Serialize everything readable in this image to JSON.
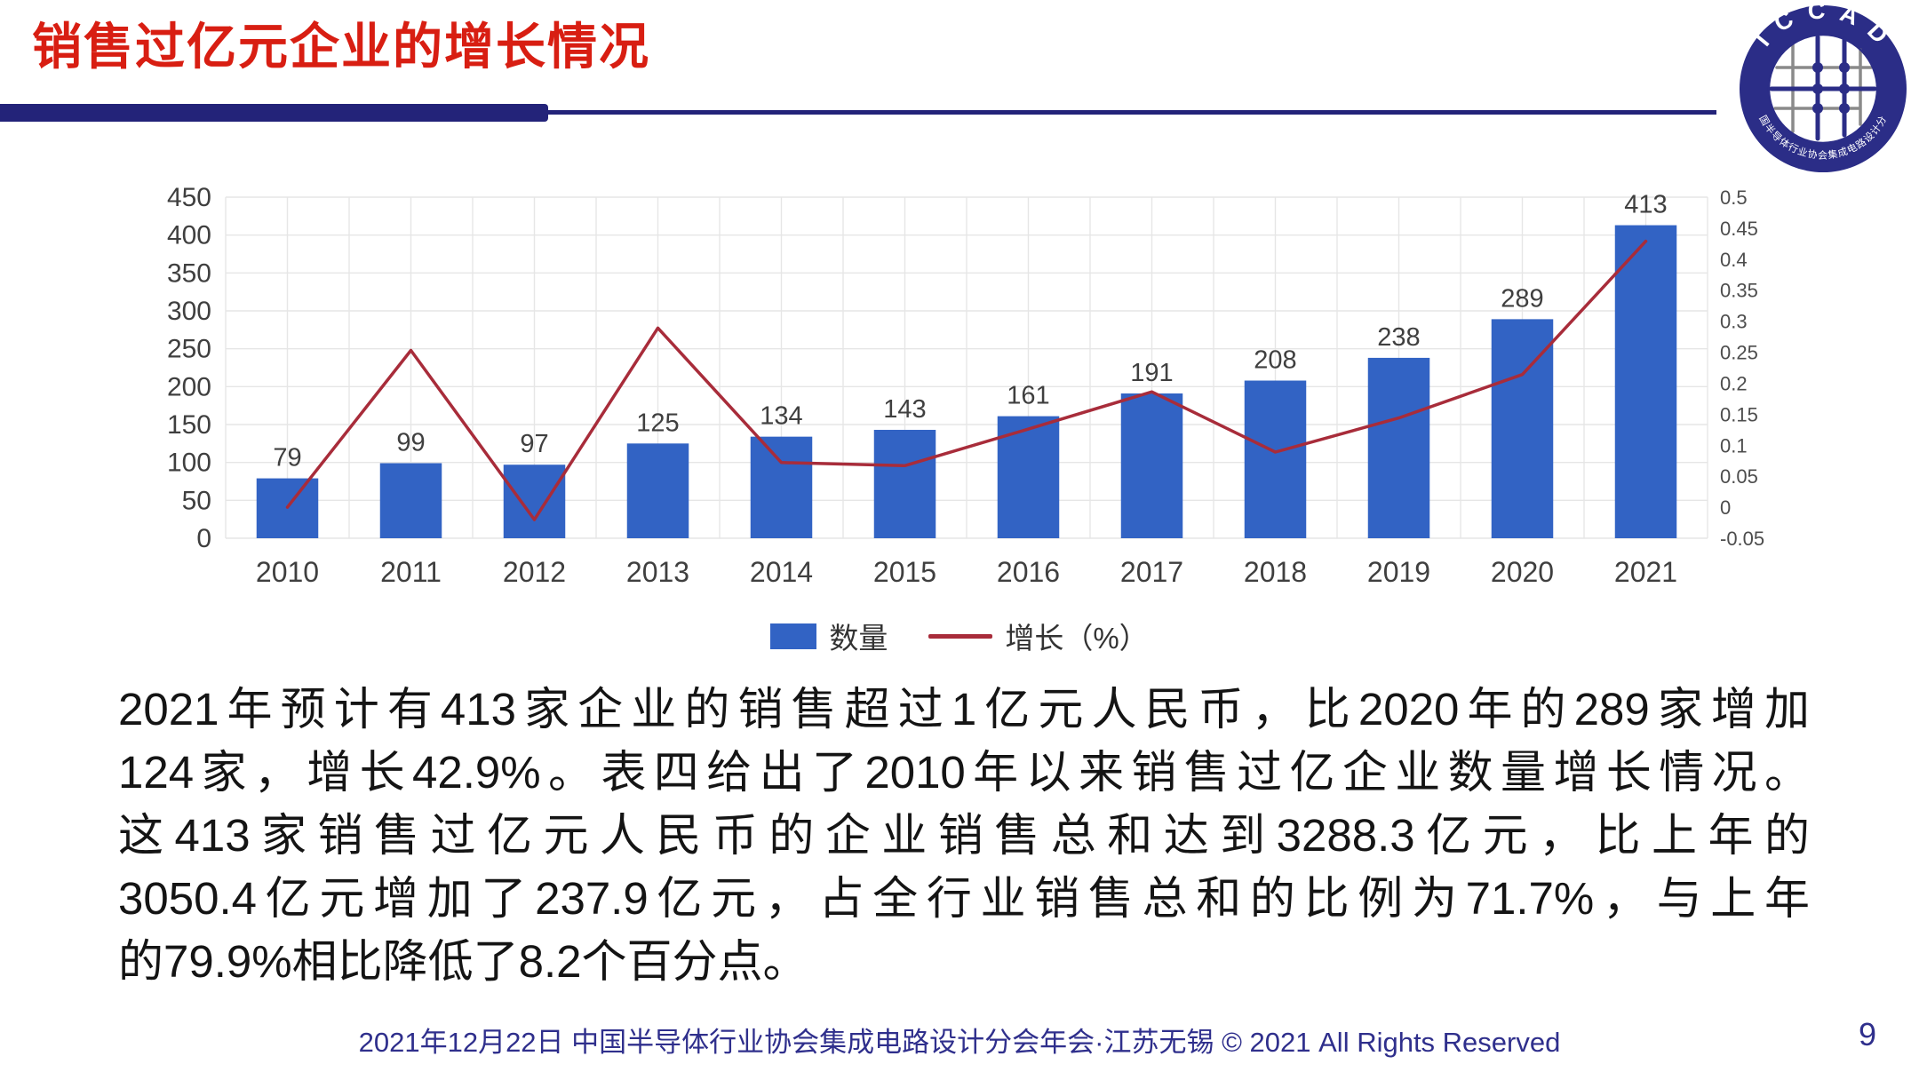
{
  "header": {
    "title": "销售过亿元企业的增长情况",
    "logo": {
      "acronym": "I C C A D",
      "ring_text": "中国半导体行业协会集成电路设计分会"
    }
  },
  "chart_data": {
    "type": "bar",
    "subtype": "bar+line combo, dual axis",
    "categories": [
      "2010",
      "2011",
      "2012",
      "2013",
      "2014",
      "2015",
      "2016",
      "2017",
      "2018",
      "2019",
      "2020",
      "2021"
    ],
    "series": [
      {
        "name": "数量",
        "type": "bar",
        "axis": "left",
        "color": "#3263C4",
        "values": [
          79,
          99,
          97,
          125,
          134,
          143,
          161,
          191,
          208,
          238,
          289,
          413
        ]
      },
      {
        "name": "增长（%）",
        "type": "line",
        "axis": "right",
        "color": "#A82C3A",
        "values": [
          0.0,
          0.253,
          -0.02,
          0.289,
          0.072,
          0.067,
          0.126,
          0.186,
          0.089,
          0.144,
          0.214,
          0.429
        ]
      }
    ],
    "axes": {
      "left": {
        "min": 0,
        "max": 450,
        "step": 50,
        "ticks": [
          "450",
          "400",
          "350",
          "300",
          "250",
          "200",
          "150",
          "100",
          "50",
          "0"
        ]
      },
      "right": {
        "min": -0.05,
        "max": 0.5,
        "step": 0.05,
        "ticks": [
          "0.5",
          "0.45",
          "0.4",
          "0.35",
          "0.3",
          "0.25",
          "0.2",
          "0.15",
          "0.1",
          "0.05",
          "0",
          "-0.05"
        ]
      }
    },
    "bar_value_labels": [
      "79",
      "99",
      "97",
      "125",
      "134",
      "143",
      "161",
      "191",
      "208",
      "238",
      "289",
      "413"
    ],
    "grid": true,
    "legend_position": "bottom",
    "grid_color": "#E6E6E6",
    "tick_color": "#3F3F3F"
  },
  "body": {
    "lines": [
      "2021年预计有413家企业的销售超过1亿元人民币，比2020年的289家增加",
      "124家，增长42.9%。表四给出了2010年以来销售过亿企业数量增长情况。",
      "这413家销售过亿元人民币的企业销售总和达到3288.3亿元，比上年的",
      "3050.4亿元增加了237.9亿元，占全行业销售总和的比例为71.7%，与上年",
      "的79.9%相比降低了8.2个百分点。"
    ]
  },
  "footer": {
    "text": "2021年12月22日 中国半导体行业协会集成电路设计分会年会·江苏无锡 © 2021 All Rights Reserved",
    "page_number": "9"
  },
  "colors": {
    "title_red": "#D81E12",
    "divider_navy": "#232379",
    "bar_blue": "#3263C4",
    "line_red": "#A82C3A",
    "footer_navy": "#2F2F8C",
    "logo_navy": "#2B2D87"
  }
}
